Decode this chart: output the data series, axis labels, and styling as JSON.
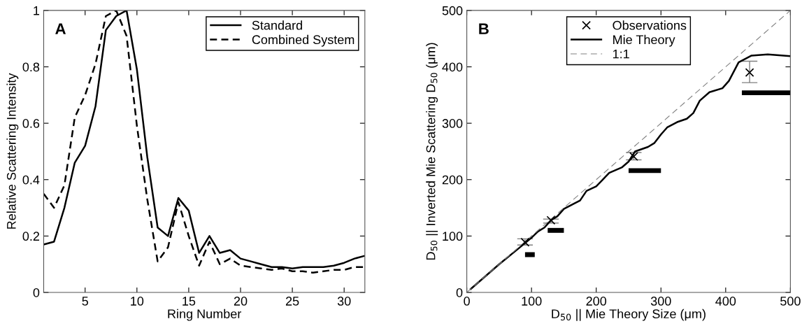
{
  "chart_data": [
    {
      "type": "line",
      "xlabel": "Ring Number",
      "ylabel": "Relative Scattering Intensity",
      "annotations": [
        "A"
      ],
      "x": [
        1,
        2,
        3,
        4,
        5,
        6,
        7,
        8,
        9,
        10,
        11,
        12,
        13,
        14,
        15,
        16,
        17,
        18,
        19,
        20,
        21,
        22,
        23,
        24,
        25,
        26,
        27,
        28,
        29,
        30,
        31,
        32
      ],
      "series": [
        {
          "name": "Standard",
          "color": "#000000",
          "line_style": "solid",
          "values": [
            0.17,
            0.18,
            0.3,
            0.46,
            0.52,
            0.66,
            0.93,
            0.98,
            1.0,
            0.79,
            0.48,
            0.23,
            0.2,
            0.335,
            0.29,
            0.14,
            0.2,
            0.14,
            0.15,
            0.12,
            0.11,
            0.1,
            0.09,
            0.09,
            0.085,
            0.09,
            0.09,
            0.09,
            0.095,
            0.105,
            0.12,
            0.13
          ]
        },
        {
          "name": "Combined System",
          "color": "#000000",
          "line_style": "dashed",
          "values": [
            0.35,
            0.3,
            0.38,
            0.62,
            0.7,
            0.81,
            0.98,
            1.0,
            0.91,
            0.59,
            0.33,
            0.11,
            0.16,
            0.32,
            0.2,
            0.095,
            0.18,
            0.1,
            0.12,
            0.095,
            0.09,
            0.085,
            0.08,
            0.085,
            0.075,
            0.075,
            0.07,
            0.075,
            0.08,
            0.08,
            0.09,
            0.09
          ]
        }
      ],
      "xlim": [
        1,
        32
      ],
      "xticks": [
        5,
        10,
        15,
        20,
        25,
        30
      ],
      "ylim": [
        0,
        1
      ],
      "yticks": [
        0,
        0.2,
        0.4,
        0.6,
        0.8,
        1
      ],
      "legend": "top right",
      "grid": false
    },
    {
      "type": "line",
      "xlabel": "D$_{50}$ || Mie Theory Size (μm)",
      "ylabel": "D$_{50}$ || Inverted Mie Scattering D$_{50}$ (μm)",
      "annotations": [
        "B"
      ],
      "series": [
        {
          "name": "Observations",
          "type": "scatter",
          "marker": "cross",
          "color": "#000000",
          "x": [
            90,
            130,
            258,
            437
          ],
          "values": [
            89,
            128,
            241,
            390
          ],
          "errors": [
            [
              84,
              95
            ],
            [
              123,
              130
            ],
            [
              235,
              248
            ],
            [
              372,
              410
            ]
          ]
        },
        {
          "name": "Mie Theory",
          "type": "line",
          "line_style": "solid",
          "color": "#000000",
          "x": [
            5,
            50,
            80,
            100,
            110,
            120,
            130,
            140,
            150,
            165,
            175,
            185,
            200,
            210,
            220,
            240,
            250,
            260,
            280,
            290,
            300,
            310,
            325,
            340,
            350,
            360,
            375,
            395,
            405,
            420,
            440,
            465,
            500
          ],
          "values": [
            5,
            50,
            78,
            97,
            108,
            115,
            128,
            135,
            148,
            157,
            163,
            180,
            188,
            200,
            212,
            222,
            232,
            250,
            258,
            265,
            280,
            293,
            302,
            308,
            318,
            340,
            355,
            362,
            375,
            408,
            420,
            422,
            419
          ]
        },
        {
          "name": "1:1",
          "type": "line",
          "line_style": "dashed",
          "color": "#808080",
          "x": [
            0,
            500
          ],
          "values": [
            0,
            500
          ]
        },
        {
          "type": "line",
          "line_style": "solid",
          "color": "#000000",
          "x": [
            90,
            105
          ],
          "values": [
            67,
            67
          ]
        },
        {
          "type": "line",
          "line_style": "solid",
          "color": "#000000",
          "x": [
            125,
            150
          ],
          "values": [
            110,
            110
          ]
        },
        {
          "type": "line",
          "line_style": "solid",
          "color": "#000000",
          "x": [
            250,
            300
          ],
          "values": [
            216,
            216
          ]
        },
        {
          "type": "line",
          "line_style": "solid",
          "color": "#000000",
          "x": [
            425,
            500
          ],
          "values": [
            354,
            354
          ]
        }
      ],
      "xlim": [
        0,
        500
      ],
      "xticks": [
        0,
        100,
        200,
        300,
        400,
        500
      ],
      "ylim": [
        0,
        500
      ],
      "yticks": [
        0,
        100,
        200,
        300,
        400,
        500
      ],
      "legend": "top",
      "grid": false
    }
  ]
}
